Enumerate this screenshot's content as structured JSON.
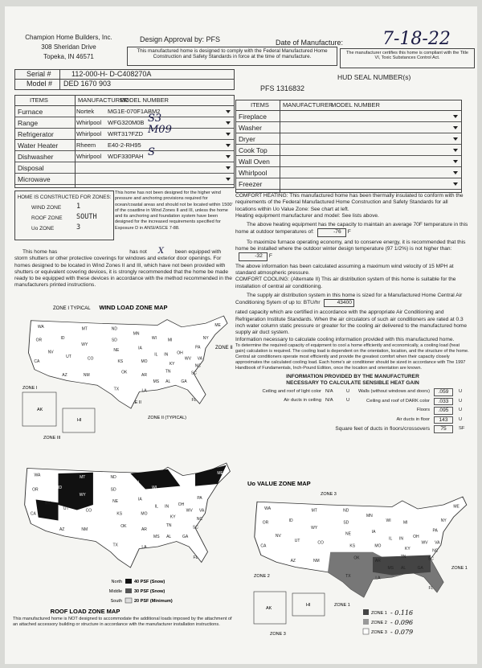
{
  "header": {
    "company": [
      "Champion Home Builders, Inc.",
      "308 Sheridan Drive",
      "Topeka, IN 46571"
    ],
    "design_approval": "Design Approval by: PFS",
    "date_label": "Date of Manufacture:",
    "date_value": "7-18-22",
    "compliance": "This manufactured home is designed to comply with the Federal Manufactured Home Construction and Safety Standards in force at the time of manufacture.",
    "tsca": "The manufacturer certifies this home is compliant with the Title VI, Toxic Substances Control Act."
  },
  "ids": {
    "serial_label": "Serial #",
    "serial": "112-000-H- D-C408270A",
    "model_label": "Model #",
    "model": "DED 1670 903",
    "hud_label": "HUD SEAL NUMBER(s)",
    "hud": "PFS 1316832"
  },
  "items_left": {
    "header": [
      "ITEMS",
      "MANUFACTURER",
      "MODEL NUMBER"
    ],
    "rows": [
      {
        "item": "Furnace",
        "maker": "Nortek",
        "model": "MG1E-070F1ABM2"
      },
      {
        "item": "Range",
        "maker": "Whirlpool",
        "model": "WFG320M0B",
        "note": "S3"
      },
      {
        "item": "Refrigerator",
        "maker": "Whirlpool",
        "model": "WRT31?FZD",
        "note": "M09"
      },
      {
        "item": "Water Heater",
        "maker": "Rheem",
        "model": "E40-2-RH95"
      },
      {
        "item": "Dishwasher",
        "maker": "Whirlpool",
        "model": "WDF330PAH",
        "note": "S"
      },
      {
        "item": "Disposal"
      },
      {
        "item": "Microwave"
      }
    ]
  },
  "items_right": {
    "header": [
      "ITEMS",
      "MANUFACTURER",
      "MODEL NUMBER"
    ],
    "rows": [
      {
        "item": "Fireplace"
      },
      {
        "item": "Washer"
      },
      {
        "item": "Dryer"
      },
      {
        "item": "Cook Top"
      },
      {
        "item": "Wall Oven"
      },
      {
        "item": "Whirlpool"
      },
      {
        "item": "Freezer"
      }
    ]
  },
  "zones": {
    "title": "HOME IS CONSTRUCTED FOR ZONES:",
    "rows": [
      [
        "WIND ZONE",
        "1"
      ],
      [
        "ROOF ZONE",
        "SOUTH"
      ],
      [
        "Uo ZONE",
        "3"
      ]
    ],
    "note": "This home has not been designed for the higher wind pressure and anchoring provisions required for ocean/coastal areas and should not be located within 1500' of the coastline in Wind Zones II and III, unless the home and its anchoring and foundation system have been designed for the increased requirements specified for Exposure D in ANSI/ASCE 7-88."
  },
  "shutters": {
    "lead": "This home has",
    "has_not": "has not",
    "mark": "X",
    "rest": "been equipped with storm shutters or other protective coverings for windows and exterior door openings. For homes designed to be located in Wind Zones II and III, which have not been provided with shutters or equivalent covering devices, it is strongly recommended that the home be made ready to be equipped with these devices in accordance with the method recommended in the manufacturers printed instructions."
  },
  "wind_map": {
    "title": "WIND LOAD ZONE MAP",
    "zone1_typical": "ZONE I TYPICAL",
    "zone2_east": "ZONE II",
    "zone1_ak": "ZONE I",
    "ak": "AK",
    "hi": "HI",
    "zone2": "ZONE II",
    "zone2_typical": "ZONE II (TYPICAL)",
    "zone3": "ZONE III",
    "states": [
      "WA",
      "OR",
      "CA",
      "NV",
      "ID",
      "MT",
      "WY",
      "UT",
      "AZ",
      "CO",
      "NM",
      "ND",
      "SD",
      "NE",
      "KS",
      "OK",
      "TX",
      "MN",
      "IA",
      "MO",
      "AR",
      "LA",
      "WI",
      "IL",
      "MS",
      "MI",
      "IN",
      "KY",
      "TN",
      "AL",
      "OH",
      "GA",
      "FL",
      "SC",
      "NC",
      "VA",
      "WV",
      "PA",
      "NY",
      "ME"
    ]
  },
  "roof_map": {
    "title": "ROOF LOAD ZONE MAP",
    "legend": [
      [
        "North",
        "40 PSF (Snow)"
      ],
      [
        "Middle",
        "30 PSF (Snow)"
      ],
      [
        "South",
        "20 PSF (Minimum)"
      ]
    ],
    "states": [
      "WA",
      "OR",
      "CA",
      "NV",
      "ID",
      "MT",
      "WY",
      "UT",
      "AZ",
      "CO",
      "NM",
      "ND",
      "SD",
      "NE",
      "KS",
      "OK",
      "TX",
      "MN",
      "IA",
      "MO",
      "AR",
      "LA",
      "WI",
      "IL",
      "MS",
      "MI",
      "IN",
      "KY",
      "TN",
      "AL",
      "OH",
      "GA",
      "FL",
      "SC",
      "NC",
      "VA",
      "WV",
      "PA",
      "NY",
      "ME"
    ],
    "footer": "This manufactured home is NOT designed to accommodate the additional loads imposed by the attachment of an attached accessory building or structure in accordance with the manufacturer installation instructions."
  },
  "comfort": {
    "heating": "COMFORT HEATING: This manufactured home has been thermally insulated to conform with the requirements of the Federal Manufactured Home Construction and Safety Standards for all locations within Uo Value Zone: See chart at left.",
    "equipment": "Heating equipment manufacturer and model: See lists above.",
    "capacity": "The above heating equipment has the capacity to maintain an average 70F temperature in this home at outdoor temperatures of:",
    "capacity_value": "-76",
    "capacity_unit": "F",
    "economy": "To maximize furnace operating economy, and to conserve energy, it is recommended that this home be installed where the outdoor winter design temperature (97 1/2%) is not higher than:",
    "economy_value": "-32",
    "economy_unit": "F",
    "wind": "The above information has been calculated assuming a maximum wind velocity of 15 MPH at standard atmospheric pressure.",
    "cooling": "COMFORT COOLING: (Alternate II) This air distribution system of this home is suitable for the installation of central air conditioning.",
    "supply": "The supply air distribution system in this home is sized for a Manufactured Home Central Air Conditioning Sytem of up to:",
    "supply_unit": "BTU/hr",
    "supply_value": "43400",
    "rated": "rated capacity which are certified in accordance with the appropriate Air Conditioning and Refrigeration Institute Standards. When the air circulators of such air conditioners are rated at 0.3 inch water column static pressure or greater for the cooling air delivered to the manufactured home supply air duct system.",
    "info": "Information necessary to calculate cooling information provided with this manufactured home.",
    "small": "To determine the required capacity of equipment to cool a home efficiently and economically, a cooling load (heat gain) calculation is required. The cooling load is dependent on the orientation, location, and the structure of the home. Central air conditioners operate most efficiently and provide the greatest comfort when their capacity closely approximates the calculated cooling load. Each home's air conditioner should be sized in accordance with The 1997 Handbook of Fundamentals, Inch-Pound Edition, once the location and orientation are known."
  },
  "heat_gain": {
    "title": [
      "INFORMATION PROVIDED BY THE MANUFACTURER",
      "NECESSARY TO CALCULATE SENSIBLE HEAT GAIN"
    ],
    "left": [
      [
        "Ceiling and roof of light color",
        "N/A",
        "U"
      ],
      [
        "Air ducts in ceiling",
        "N/A",
        "U"
      ]
    ],
    "right": [
      [
        "Walls (without windows and doors)",
        ".059",
        "U"
      ],
      [
        "Ceiling and roof of DARK color",
        ".033",
        "U"
      ],
      [
        "Floors",
        ".095",
        "U"
      ],
      [
        "Air ducts in floor",
        "143",
        "U"
      ],
      [
        "Square feet of ducts in floors/crossovers",
        "75",
        "SF"
      ]
    ]
  },
  "uo_map": {
    "title": "Uo VALUE ZONE MAP",
    "zone3_top": "ZONE 3",
    "zone2": "ZONE 2",
    "zone1_right": "ZONE 1",
    "zone1_bottom": "ZONE 1",
    "zone3_bottom": "ZONE 3",
    "ak": "AK",
    "hi": "HI",
    "legend": [
      [
        "ZONE 1",
        "- 0.116"
      ],
      [
        "ZONE 2",
        "- 0.096"
      ],
      [
        "ZONE 3",
        "- 0.079"
      ]
    ],
    "states": [
      "WA",
      "OR",
      "CA",
      "NV",
      "ID",
      "MT",
      "WY",
      "UT",
      "AZ",
      "CO",
      "NM",
      "ND",
      "SD",
      "NE",
      "KS",
      "OK",
      "TX",
      "MN",
      "IA",
      "MO",
      "AR",
      "LA",
      "WI",
      "IL",
      "MS",
      "MI",
      "IN",
      "KY",
      "TN",
      "AL",
      "OH",
      "GA",
      "FL",
      "SC",
      "NC",
      "VA",
      "WV",
      "PA",
      "NY",
      "ME"
    ]
  }
}
